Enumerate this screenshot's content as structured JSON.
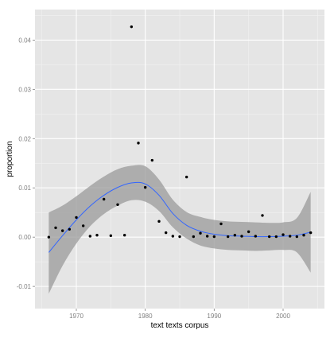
{
  "chart_data": {
    "type": "scatter",
    "title": "",
    "xlabel": "text texts corpus",
    "ylabel": "proportion",
    "xlim": [
      1964,
      2006
    ],
    "ylim": [
      -0.0145,
      0.0462
    ],
    "x_ticks": [
      1970,
      1980,
      1990,
      2000
    ],
    "x_tick_labels": [
      "1970",
      "1980",
      "1990",
      "2000"
    ],
    "y_ticks": [
      -0.01,
      0.0,
      0.01,
      0.02,
      0.03,
      0.04
    ],
    "y_tick_labels": [
      "-0.01",
      "0.00",
      "0.01",
      "0.02",
      "0.03",
      "0.04"
    ],
    "grid": true,
    "legend": "none",
    "colors": {
      "panel_background": "#e5e5e5",
      "grid_major": "#ffffff",
      "grid_minor": "#f2f2f2",
      "points": "#000000",
      "smooth_line": "#3366ff",
      "confidence_band": "#999999",
      "tick_label": "#7f7f7f"
    },
    "series": [
      {
        "kind": "points",
        "x": [
          1966,
          1967,
          1968,
          1969,
          1970,
          1971,
          1972,
          1973,
          1974,
          1975,
          1976,
          1977,
          1978,
          1979,
          1980,
          1981,
          1982,
          1983,
          1984,
          1985,
          1986,
          1987,
          1988,
          1989,
          1990,
          1991,
          1992,
          1993,
          1994,
          1995,
          1996,
          1997,
          1998,
          1999,
          2000,
          2001,
          2002,
          2003,
          2004
        ],
        "y": [
          0.0,
          0.0019,
          0.0013,
          0.0016,
          0.004,
          0.0023,
          0.0002,
          0.0004,
          0.0077,
          0.0003,
          0.0066,
          0.0004,
          0.0427,
          0.0191,
          0.0101,
          0.0156,
          0.0032,
          0.0009,
          0.0002,
          0.0001,
          0.0122,
          0.0001,
          0.0008,
          0.0002,
          0.0001,
          0.0027,
          0.0001,
          0.0004,
          0.0002,
          0.0011,
          0.0002,
          0.0044,
          0.0001,
          0.0001,
          0.0005,
          0.0002,
          0.0001,
          0.0004,
          0.0009
        ]
      },
      {
        "kind": "smooth",
        "x": [
          1966,
          1968,
          1970,
          1972,
          1974,
          1976,
          1978,
          1980,
          1982,
          1984,
          1986,
          1988,
          1990,
          1992,
          1994,
          1996,
          1998,
          2000,
          2002,
          2004
        ],
        "y": [
          -0.0031,
          0.0003,
          0.0035,
          0.0063,
          0.0085,
          0.0101,
          0.011,
          0.0108,
          0.0085,
          0.0048,
          0.0024,
          0.0012,
          0.0006,
          0.0003,
          0.0002,
          0.0001,
          0.0001,
          0.0002,
          0.0004,
          0.001
        ],
        "lower": [
          -0.0115,
          -0.0058,
          -0.0013,
          0.0022,
          0.0047,
          0.0064,
          0.0075,
          0.0072,
          0.0053,
          0.002,
          -0.0003,
          -0.0017,
          -0.0023,
          -0.0026,
          -0.0027,
          -0.0028,
          -0.0027,
          -0.0026,
          -0.0031,
          -0.0072
        ],
        "upper": [
          0.005,
          0.0064,
          0.0083,
          0.0104,
          0.0123,
          0.0138,
          0.0145,
          0.0144,
          0.0117,
          0.0076,
          0.0051,
          0.0041,
          0.0035,
          0.0032,
          0.0031,
          0.003,
          0.0029,
          0.003,
          0.0039,
          0.0092
        ]
      }
    ]
  }
}
